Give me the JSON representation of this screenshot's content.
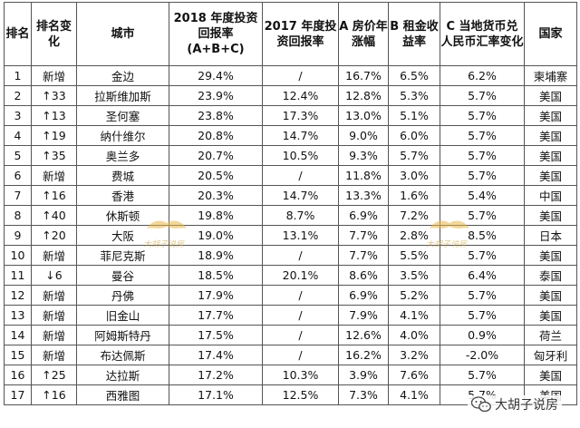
{
  "table": {
    "headers": {
      "rank": "排名",
      "change": "排名变化",
      "city": "城市",
      "roi2018": "2018 年度投资回报率 (A+B+C)",
      "roi2017": "2017 年度投资回报率",
      "price": "A 房价年涨幅",
      "rent": "B 租金收益率",
      "fx": "C 当地货币兑人民币汇率变化",
      "country": "国家"
    },
    "rows": [
      {
        "rank": "1",
        "change": "新增",
        "city": "金边",
        "roi2018": "29.4%",
        "roi2017": "/",
        "price": "16.7%",
        "rent": "6.5%",
        "fx": "6.2%",
        "country": "柬埔寨"
      },
      {
        "rank": "2",
        "change": "↑33",
        "city": "拉斯维加斯",
        "roi2018": "23.9%",
        "roi2017": "12.4%",
        "price": "12.8%",
        "rent": "5.3%",
        "fx": "5.7%",
        "country": "美国"
      },
      {
        "rank": "3",
        "change": "↑13",
        "city": "圣何塞",
        "roi2018": "23.8%",
        "roi2017": "17.3%",
        "price": "13.0%",
        "rent": "5.1%",
        "fx": "5.7%",
        "country": "美国"
      },
      {
        "rank": "4",
        "change": "↑19",
        "city": "纳什维尔",
        "roi2018": "20.8%",
        "roi2017": "14.7%",
        "price": "9.0%",
        "rent": "6.0%",
        "fx": "5.7%",
        "country": "美国"
      },
      {
        "rank": "5",
        "change": "↑35",
        "city": "奥兰多",
        "roi2018": "20.7%",
        "roi2017": "10.5%",
        "price": "9.3%",
        "rent": "5.7%",
        "fx": "5.7%",
        "country": "美国"
      },
      {
        "rank": "6",
        "change": "新增",
        "city": "费城",
        "roi2018": "20.5%",
        "roi2017": "/",
        "price": "11.8%",
        "rent": "3.0%",
        "fx": "5.7%",
        "country": "美国"
      },
      {
        "rank": "7",
        "change": "↑16",
        "city": "香港",
        "roi2018": "20.3%",
        "roi2017": "14.7%",
        "price": "13.3%",
        "rent": "1.6%",
        "fx": "5.4%",
        "country": "中国"
      },
      {
        "rank": "8",
        "change": "↑40",
        "city": "休斯顿",
        "roi2018": "19.8%",
        "roi2017": "8.7%",
        "price": "6.9%",
        "rent": "7.2%",
        "fx": "5.7%",
        "country": "美国"
      },
      {
        "rank": "9",
        "change": "↑20",
        "city": "大阪",
        "roi2018": "19.0%",
        "roi2017": "13.1%",
        "price": "7.7%",
        "rent": "2.8%",
        "fx": "8.5%",
        "country": "日本"
      },
      {
        "rank": "10",
        "change": "新增",
        "city": "菲尼克斯",
        "roi2018": "18.9%",
        "roi2017": "/",
        "price": "7.7%",
        "rent": "5.5%",
        "fx": "5.7%",
        "country": "美国"
      },
      {
        "rank": "11",
        "change": "↓6",
        "city": "曼谷",
        "roi2018": "18.5%",
        "roi2017": "20.1%",
        "price": "8.6%",
        "rent": "3.5%",
        "fx": "6.4%",
        "country": "泰国"
      },
      {
        "rank": "12",
        "change": "新增",
        "city": "丹佛",
        "roi2018": "17.9%",
        "roi2017": "/",
        "price": "6.9%",
        "rent": "5.2%",
        "fx": "5.7%",
        "country": "美国"
      },
      {
        "rank": "13",
        "change": "新增",
        "city": "旧金山",
        "roi2018": "17.7%",
        "roi2017": "/",
        "price": "7.9%",
        "rent": "4.1%",
        "fx": "5.7%",
        "country": "美国"
      },
      {
        "rank": "14",
        "change": "新增",
        "city": "阿姆斯特丹",
        "roi2018": "17.5%",
        "roi2017": "/",
        "price": "12.6%",
        "rent": "4.0%",
        "fx": "0.9%",
        "country": "荷兰"
      },
      {
        "rank": "15",
        "change": "新增",
        "city": "布达佩斯",
        "roi2018": "17.4%",
        "roi2017": "/",
        "price": "16.2%",
        "rent": "3.2%",
        "fx": "-2.0%",
        "country": "匈牙利"
      },
      {
        "rank": "16",
        "change": "↑25",
        "city": "达拉斯",
        "roi2018": "17.2%",
        "roi2017": "10.3%",
        "price": "3.9%",
        "rent": "7.6%",
        "fx": "5.7%",
        "country": "美国"
      },
      {
        "rank": "17",
        "change": "↑16",
        "city": "西雅图",
        "roi2018": "17.1%",
        "roi2017": "12.5%",
        "price": "7.3%",
        "rent": "4.1%",
        "fx": "5.7%",
        "country": "美国"
      }
    ]
  },
  "watermark": {
    "text": "大胡子说房",
    "wechat_label": "大胡子说房",
    "icons": [
      "mustache-icon",
      "wechat-icon"
    ]
  }
}
